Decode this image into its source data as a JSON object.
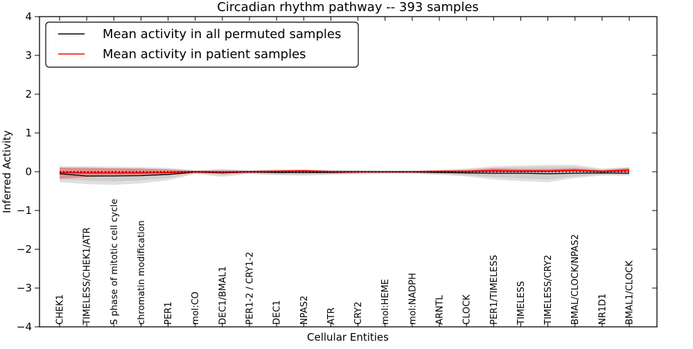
{
  "title": "Circadian rhythm pathway -- 393 samples",
  "axes": {
    "ylabel": "Inferred Activity",
    "xlabel": "Cellular Entities",
    "yticks": [
      4,
      3,
      2,
      1,
      0,
      -1,
      -2,
      -3,
      -4
    ],
    "ylim": [
      -4,
      4
    ],
    "grid": false
  },
  "legend": {
    "position": "upper left",
    "items": [
      {
        "label": "Mean activity in all permuted samples",
        "color": "#000000"
      },
      {
        "label": "Mean activity in patient samples",
        "color": "#ff0000"
      }
    ]
  },
  "chart_data": {
    "type": "line",
    "title": "Circadian rhythm pathway -- 393 samples",
    "xlabel": "Cellular Entities",
    "ylabel": "Inferred Activity",
    "ylim": [
      -4,
      4
    ],
    "grid": false,
    "legend_position": "upper left",
    "categories": [
      "CHEK1",
      "TIMELESS/CHEK1/ATR",
      "S phase of mitotic cell cycle",
      "chromatin modification",
      "PER1",
      "mol:CO",
      "DEC1/BMAL1",
      "PER1-2 / CRY1-2",
      "DEC1",
      "NPAS2",
      "ATR",
      "CRY2",
      "mol:HEME",
      "mol:NADPH",
      "ARNTL",
      "CLOCK",
      "PER1/TIMELESS",
      "TIMELESS",
      "TIMELESS/CRY2",
      "BMAL/CLOCK/NPAS2",
      "NR1D1",
      "BMAL1/CLOCK"
    ],
    "series": [
      {
        "name": "Mean activity in all permuted samples",
        "color": "#000000",
        "style": "solid",
        "values": [
          -0.05,
          -0.11,
          -0.11,
          -0.1,
          -0.07,
          -0.01,
          -0.03,
          -0.01,
          -0.02,
          -0.02,
          -0.02,
          -0.01,
          -0.01,
          -0.01,
          -0.02,
          -0.03,
          -0.04,
          -0.04,
          -0.05,
          -0.04,
          -0.03,
          -0.04
        ]
      },
      {
        "name": "Mean activity in patient samples",
        "color": "#ff0000",
        "style": "solid",
        "values": [
          -0.02,
          -0.03,
          -0.03,
          -0.03,
          -0.02,
          0.0,
          -0.01,
          0.0,
          0.01,
          0.02,
          0.0,
          0.0,
          0.0,
          0.0,
          0.01,
          0.01,
          0.03,
          0.02,
          0.02,
          0.04,
          0.01,
          0.04
        ]
      }
    ],
    "zero_line": {
      "y": 0,
      "color": "#000000",
      "style": "dotted"
    },
    "bands": [
      {
        "name": "permuted-range-outer",
        "color": "#000000",
        "opacity": 0.12,
        "upper": [
          0.14,
          0.14,
          0.13,
          0.12,
          0.1,
          0.04,
          0.07,
          0.04,
          0.06,
          0.06,
          0.05,
          0.04,
          0.03,
          0.03,
          0.05,
          0.08,
          0.14,
          0.16,
          0.18,
          0.18,
          0.08,
          0.12
        ],
        "lower": [
          -0.27,
          -0.32,
          -0.34,
          -0.3,
          -0.22,
          -0.06,
          -0.13,
          -0.06,
          -0.09,
          -0.1,
          -0.08,
          -0.07,
          -0.05,
          -0.05,
          -0.08,
          -0.12,
          -0.2,
          -0.24,
          -0.27,
          -0.16,
          -0.1,
          -0.1
        ]
      },
      {
        "name": "permuted-range-inner",
        "color": "#000000",
        "opacity": 0.08,
        "upper": [
          0.1,
          0.1,
          0.09,
          0.09,
          0.07,
          0.03,
          0.05,
          0.03,
          0.04,
          0.04,
          0.04,
          0.03,
          0.02,
          0.02,
          0.04,
          0.06,
          0.1,
          0.12,
          0.13,
          0.13,
          0.06,
          0.09
        ],
        "lower": [
          -0.2,
          -0.23,
          -0.25,
          -0.22,
          -0.16,
          -0.04,
          -0.09,
          -0.04,
          -0.07,
          -0.07,
          -0.06,
          -0.05,
          -0.04,
          -0.04,
          -0.06,
          -0.09,
          -0.14,
          -0.17,
          -0.2,
          -0.12,
          -0.07,
          -0.07
        ]
      },
      {
        "name": "patient-range",
        "color": "#ff0000",
        "opacity": 0.3,
        "upper": [
          0.11,
          0.1,
          0.09,
          0.08,
          0.06,
          0.02,
          0.03,
          0.02,
          0.04,
          0.05,
          0.02,
          0.02,
          0.01,
          0.01,
          0.03,
          0.04,
          0.09,
          0.07,
          0.07,
          0.09,
          0.04,
          0.1
        ],
        "lower": [
          -0.18,
          -0.14,
          -0.12,
          -0.1,
          -0.08,
          -0.03,
          -0.04,
          -0.02,
          -0.02,
          -0.01,
          -0.02,
          -0.02,
          -0.01,
          -0.01,
          -0.01,
          -0.02,
          -0.02,
          -0.02,
          -0.02,
          -0.01,
          -0.01,
          -0.02
        ]
      }
    ]
  }
}
